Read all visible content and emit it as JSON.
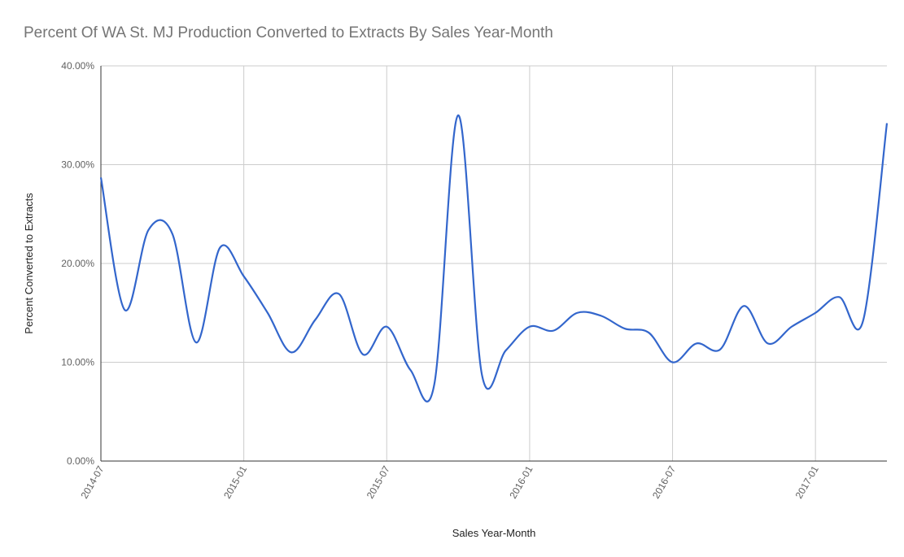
{
  "chart_data": {
    "type": "line",
    "title": "Percent Of WA St. MJ Production Converted to Extracts By Sales Year-Month",
    "xlabel": "Sales Year-Month",
    "ylabel": "Percent Converted to Extracts",
    "ylim": [
      0,
      40
    ],
    "y_ticks": [
      "0.00%",
      "10.00%",
      "20.00%",
      "30.00%",
      "40.00%"
    ],
    "x_ticks": [
      "2014-07",
      "2015-01",
      "2015-07",
      "2016-01",
      "2016-07",
      "2017-01"
    ],
    "grid": true,
    "legend": "none",
    "series_color": "#3366cc",
    "x": [
      "2014-07",
      "2014-08",
      "2014-09",
      "2014-10",
      "2014-11",
      "2014-12",
      "2015-01",
      "2015-02",
      "2015-03",
      "2015-04",
      "2015-05",
      "2015-06",
      "2015-07",
      "2015-08",
      "2015-09",
      "2015-10",
      "2015-11",
      "2015-12",
      "2016-01",
      "2016-02",
      "2016-03",
      "2016-04",
      "2016-05",
      "2016-06",
      "2016-07",
      "2016-08",
      "2016-09",
      "2016-10",
      "2016-11",
      "2016-12",
      "2017-01",
      "2017-02",
      "2017-03",
      "2017-04"
    ],
    "series": [
      {
        "values": [
          28.7,
          15.3,
          23.4,
          23.0,
          12.0,
          21.6,
          18.7,
          15.0,
          11.0,
          14.3,
          16.9,
          10.8,
          13.6,
          9.2,
          7.8,
          35.0,
          8.7,
          11.2,
          13.6,
          13.2,
          15.0,
          14.7,
          13.4,
          13.0,
          10.0,
          11.9,
          11.3,
          15.7,
          11.9,
          13.6,
          15.0,
          16.6,
          14.2,
          34.2
        ]
      }
    ]
  }
}
